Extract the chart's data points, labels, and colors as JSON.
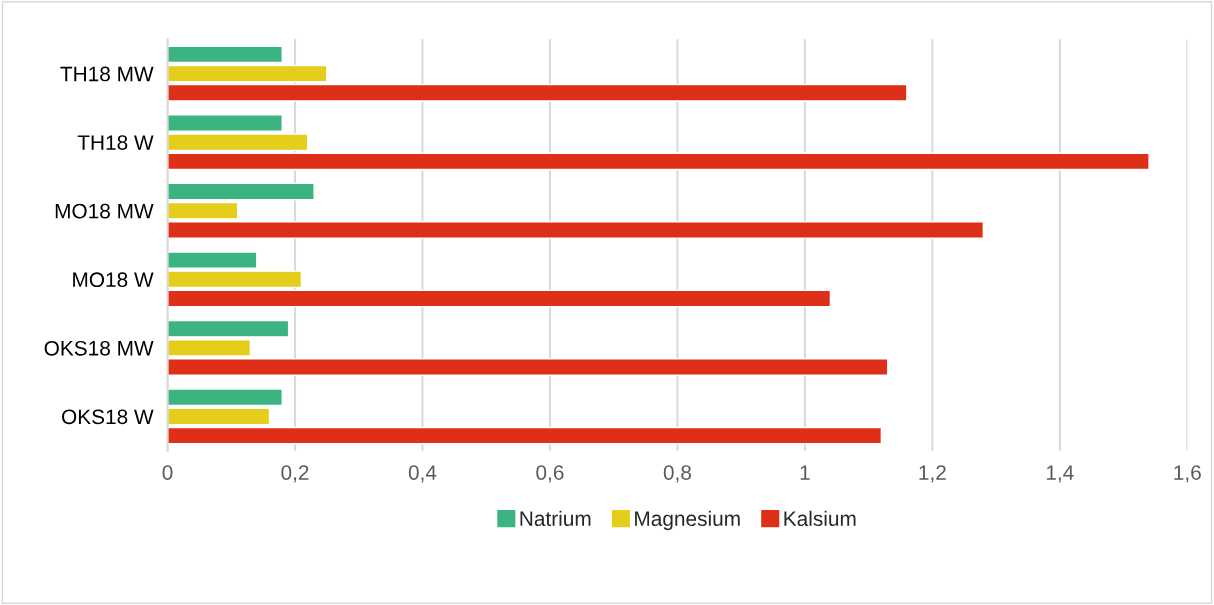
{
  "chart_data": {
    "type": "bar",
    "orientation": "horizontal",
    "categories": [
      "TH18 MW",
      "TH18 W",
      "MO18 MW",
      "MO18 W",
      "OKS18 MW",
      "OKS18 W"
    ],
    "series": [
      {
        "name": "Natrium",
        "color": "#3cb482",
        "values": [
          0.18,
          0.18,
          0.23,
          0.14,
          0.19,
          0.18
        ]
      },
      {
        "name": "Magnesium",
        "color": "#e5cd1b",
        "values": [
          0.25,
          0.22,
          0.11,
          0.21,
          0.13,
          0.16
        ]
      },
      {
        "name": "Kalsium",
        "color": "#de2f18",
        "values": [
          1.16,
          1.54,
          1.28,
          1.04,
          1.13,
          1.12
        ]
      }
    ],
    "xlim": [
      0,
      1.6
    ],
    "xticks": [
      0,
      {
        "value": 0.2,
        "label": "0,2"
      },
      {
        "value": 0.4,
        "label": "0,4"
      },
      {
        "value": 0.6,
        "label": "0,6"
      },
      {
        "value": 0.8,
        "label": "0,8"
      },
      1,
      {
        "value": 1.2,
        "label": "1,2"
      },
      {
        "value": 1.4,
        "label": "1,4"
      },
      {
        "value": 1.6,
        "label": "1,6"
      }
    ],
    "grid": "x",
    "legend": "bottom"
  }
}
